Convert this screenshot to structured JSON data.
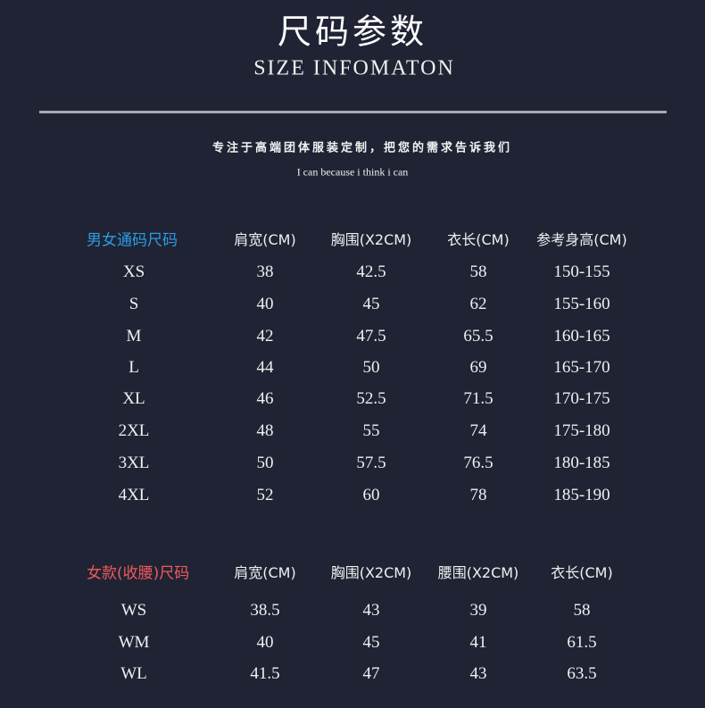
{
  "header": {
    "title": "尺码参数",
    "subtitle": "SIZE INFOMATON",
    "slogan": "专注于高端团体服装定制，把您的需求告诉我们",
    "motto": "I can because i think i can"
  },
  "colors": {
    "background": "#1f2334",
    "unisex_label": "#2a9de0",
    "women_label": "#f05a5a",
    "divider": "#a9abb0"
  },
  "unisex_table": {
    "label": "男女通码尺码",
    "columns": [
      "肩宽(CM)",
      "胸围(X2CM)",
      "衣长(CM)",
      "参考身高(CM)"
    ],
    "rows": [
      [
        "XS",
        "38",
        "42.5",
        "58",
        "150-155"
      ],
      [
        "S",
        "40",
        "45",
        "62",
        "155-160"
      ],
      [
        "M",
        "42",
        "47.5",
        "65.5",
        "160-165"
      ],
      [
        "L",
        "44",
        "50",
        "69",
        "165-170"
      ],
      [
        "XL",
        "46",
        "52.5",
        "71.5",
        "170-175"
      ],
      [
        "2XL",
        "48",
        "55",
        "74",
        "175-180"
      ],
      [
        "3XL",
        "50",
        "57.5",
        "76.5",
        "180-185"
      ],
      [
        "4XL",
        "52",
        "60",
        "78",
        "185-190"
      ]
    ]
  },
  "women_table": {
    "label": "女款(收腰)尺码",
    "columns": [
      "肩宽(CM)",
      "胸围(X2CM)",
      "腰围(X2CM)",
      "衣长(CM)"
    ],
    "rows": [
      [
        "WS",
        "38.5",
        "43",
        "39",
        "58"
      ],
      [
        "WM",
        "40",
        "45",
        "41",
        "61.5"
      ],
      [
        "WL",
        "41.5",
        "47",
        "43",
        "63.5"
      ]
    ]
  }
}
